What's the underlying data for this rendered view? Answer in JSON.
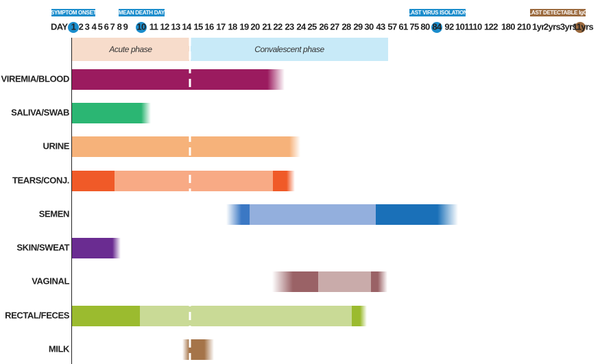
{
  "axis_title": "DAY",
  "markers": [
    {
      "label": "SYMPTOM ONSET",
      "color": "#1b8dcc"
    },
    {
      "label": "MEAN DEATH DAY",
      "color": "#1b8dcc"
    },
    {
      "label": "LAST VIRUS ISOLATION",
      "color": "#1b8dcc"
    },
    {
      "label": "LAST DETECTABLE IgG",
      "color": "#9b6a3e"
    }
  ],
  "days": [
    "1",
    "2",
    "3",
    "4",
    "5",
    "6",
    "7",
    "8",
    "9",
    "10",
    "11",
    "12",
    "13",
    "14",
    "15",
    "16",
    "17",
    "18",
    "19",
    "20",
    "21",
    "22",
    "23",
    "24",
    "25",
    "26",
    "27",
    "28",
    "29",
    "30",
    "43",
    "57",
    "61",
    "75",
    "80",
    "84",
    "92",
    "101",
    "110",
    "122",
    "180",
    "210",
    "1yr",
    "2yrs",
    "3yrs",
    "11yrs"
  ],
  "phases": [
    {
      "label": "Acute phase",
      "color": "#f7dccb"
    },
    {
      "label": "Convalescent phase",
      "color": "#c8eaf8"
    }
  ],
  "rows": [
    {
      "label": "VIREMIA/BLOOD",
      "colors": [
        "#9b1b5f"
      ]
    },
    {
      "label": "SALIVA/SWAB",
      "colors": [
        "#2bb673"
      ]
    },
    {
      "label": "URINE",
      "colors": [
        "#f6b27a"
      ]
    },
    {
      "label": "TEARS/CONJ.",
      "colors": [
        "#f05a28",
        "#f8aa85",
        "#f05a28"
      ]
    },
    {
      "label": "SEMEN",
      "colors": [
        "#3b78c4",
        "#93afdd",
        "#1a70b8"
      ]
    },
    {
      "label": "SKIN/SWEAT",
      "colors": [
        "#6a2c91"
      ]
    },
    {
      "label": "VAGINAL",
      "colors": [
        "#9a6266",
        "#9a6266",
        "#c9abaa",
        "#9a6266"
      ]
    },
    {
      "label": "RECTAL/FECES",
      "colors": [
        "#9bbb2f",
        "#c9da96",
        "#9bbb2f"
      ]
    },
    {
      "label": "MILK",
      "colors": [
        "#a57449"
      ]
    }
  ]
}
